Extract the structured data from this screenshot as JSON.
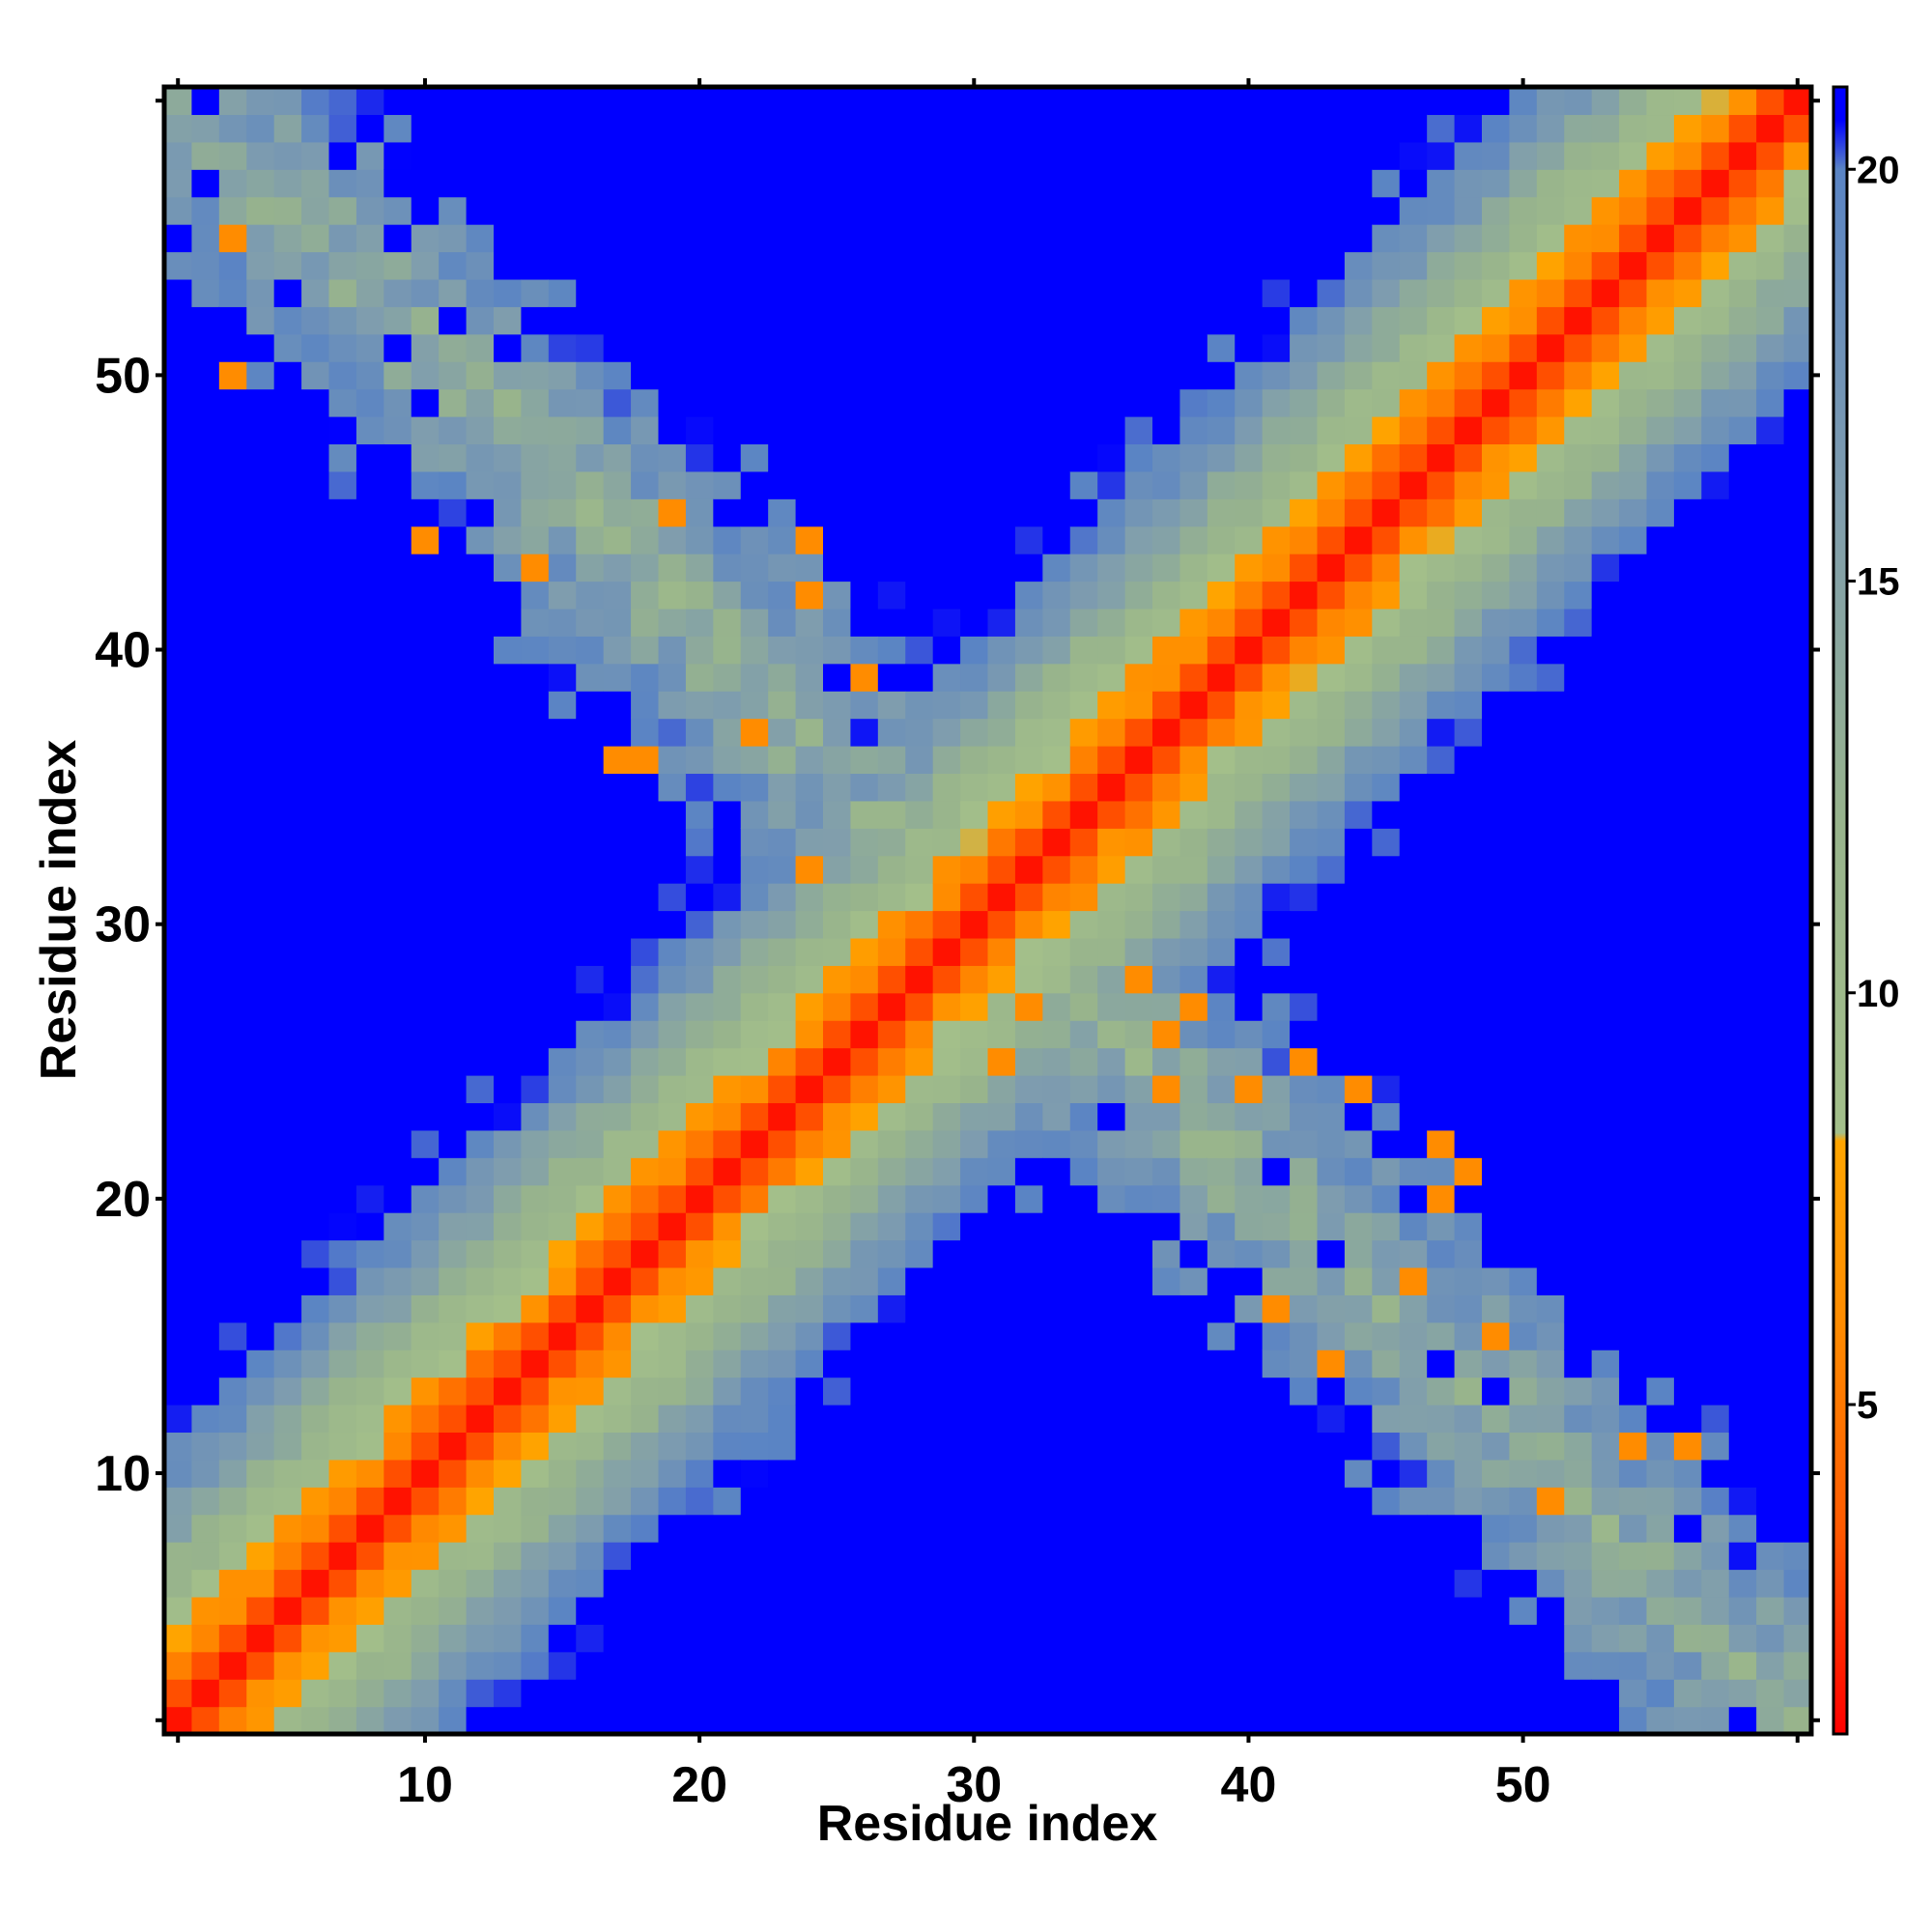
{
  "chart_data": {
    "type": "heatmap",
    "title": "",
    "xlabel": "Residue index",
    "ylabel": "Residue index",
    "n_residues": 60,
    "x_ticks": [
      10,
      20,
      30,
      40,
      50
    ],
    "y_ticks": [
      10,
      20,
      30,
      40,
      50
    ],
    "colorbar": {
      "ticks": [
        5,
        10,
        15,
        20
      ],
      "range": [
        1,
        21
      ],
      "stops": [
        {
          "value": 1,
          "color": "#ff0000"
        },
        {
          "value": 3.5,
          "color": "#ff5a00"
        },
        {
          "value": 6,
          "color": "#ff8c00"
        },
        {
          "value": 8.2,
          "color": "#ffa500"
        },
        {
          "value": 8.3,
          "color": "#a3bf8a"
        },
        {
          "value": 12,
          "color": "#98b48c"
        },
        {
          "value": 16,
          "color": "#7f9dae"
        },
        {
          "value": 20,
          "color": "#5a84c4"
        },
        {
          "value": 20.6,
          "color": "#0000ff"
        },
        {
          "value": 21,
          "color": "#0000ff"
        }
      ]
    },
    "description_of_values": "Symmetric-looking residue-residue distance map: low values (red) along the main diagonal, increasing through orange, sage and steel-blue bands; second anti-diagonal band of contacts; saturated blue (>=21) elsewhere.",
    "main_diagonal_profile": [
      {
        "offset": 0,
        "value": 1.5
      },
      {
        "offset": 1,
        "value": 3.2
      },
      {
        "offset": 2,
        "value": 5.6
      },
      {
        "offset": 3,
        "value": 7.4
      },
      {
        "offset": 4,
        "value": 9.6
      },
      {
        "offset": 5,
        "value": 11.2
      },
      {
        "offset": 6,
        "value": 12.8
      },
      {
        "offset": 7,
        "value": 14.5
      },
      {
        "offset": 8,
        "value": 16.2
      },
      {
        "offset": 9,
        "value": 18.0
      },
      {
        "offset": 10,
        "value": 19.5
      },
      {
        "offset": 11,
        "value": 21
      }
    ],
    "antidiagonal_band": {
      "index_sum": 61,
      "center_value": 12.5,
      "edge_value": 20
    }
  }
}
